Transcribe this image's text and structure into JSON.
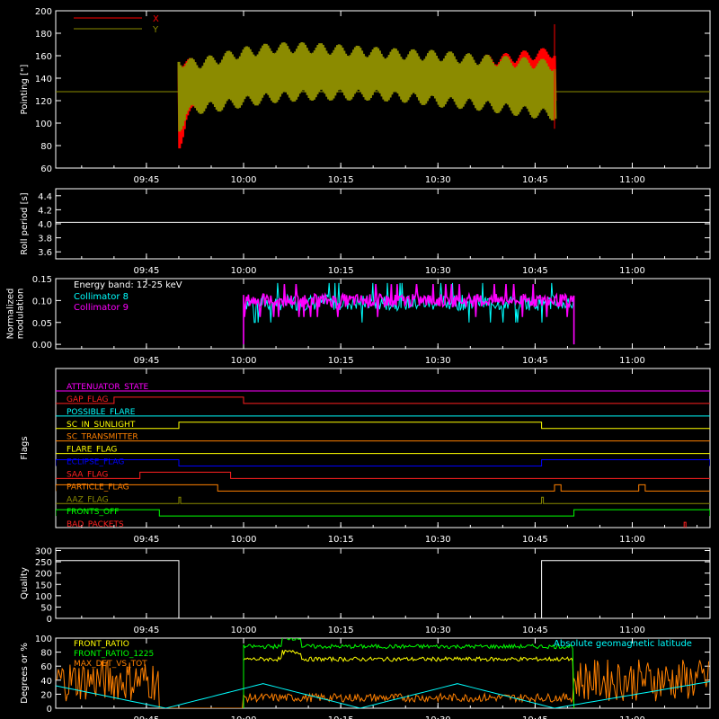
{
  "time_axis": {
    "start": "09:31",
    "end": "11:12",
    "ticks": [
      "09:45",
      "10:00",
      "10:15",
      "10:30",
      "10:45",
      "11:00"
    ]
  },
  "chart_data": [
    {
      "id": "pointing",
      "type": "line",
      "ylabel": "Pointing [\"]",
      "ylim": [
        60,
        200
      ],
      "yticks": [
        60,
        80,
        100,
        120,
        140,
        160,
        180,
        200
      ],
      "legend": "top-left",
      "series": [
        {
          "name": "X",
          "color": "#ff0000",
          "envelope": {
            "t": [
              "09:50",
              "09:51",
              "09:53",
              "09:56",
              "10:00",
              "10:05",
              "10:10",
              "10:15",
              "10:20",
              "10:25",
              "10:30",
              "10:35",
              "10:40",
              "10:45",
              "10:48"
            ],
            "upper": [
              160,
              160,
              155,
              150,
              155,
              160,
              162,
              160,
              158,
              158,
              158,
              160,
              162,
              166,
              168
            ],
            "lower": [
              75,
              100,
              110,
              118,
              120,
              121,
              122,
              122,
              122,
              121,
              120,
              120,
              120,
              120,
              118
            ]
          }
        },
        {
          "name": "Y",
          "color": "#8b8b00",
          "envelope": {
            "t": [
              "09:50",
              "09:51",
              "09:53",
              "09:56",
              "10:00",
              "10:05",
              "10:10",
              "10:15",
              "10:20",
              "10:25",
              "10:30",
              "10:35",
              "10:40",
              "10:45",
              "10:48"
            ],
            "upper": [
              162,
              158,
              158,
              162,
              168,
              172,
              172,
              170,
              168,
              166,
              165,
              162,
              160,
              158,
              156
            ],
            "lower": [
              90,
              105,
              108,
              110,
              114,
              118,
              120,
              120,
              120,
              118,
              114,
              112,
              108,
              104,
              102
            ]
          },
          "baseline": 128
        }
      ]
    },
    {
      "id": "roll",
      "type": "line",
      "ylabel": "Roll period [s]",
      "ylim": [
        3.5,
        4.5
      ],
      "yticks": [
        3.6,
        3.8,
        4.0,
        4.2,
        4.4
      ],
      "series": [
        {
          "color": "#ffffff",
          "t": [
            "09:31",
            "11:12"
          ],
          "y": [
            4.02,
            4.02
          ]
        }
      ]
    },
    {
      "id": "modulation",
      "type": "line",
      "ylabel": [
        "Normalized",
        "modulation"
      ],
      "ylim": [
        -0.01,
        0.15
      ],
      "yticks": [
        0.0,
        0.05,
        0.1,
        0.15
      ],
      "annotation": "Energy band: 12-25 keV",
      "legend": "top-left",
      "series": [
        {
          "name": "Collimator 8",
          "color": "#00ffff",
          "t": [
            "10:00",
            "10:51"
          ],
          "mean": 0.095,
          "noise": 0.018
        },
        {
          "name": "Collimator 9",
          "color": "#ff00ff",
          "t": [
            "10:00",
            "10:51"
          ],
          "mean": 0.1,
          "noise": 0.015
        }
      ]
    },
    {
      "id": "flags",
      "type": "line",
      "ylabel": "Flags",
      "flags": [
        {
          "name": "ATTENUATOR_STATE",
          "color": "#ff00ff",
          "on": []
        },
        {
          "name": "GAP_FLAG",
          "color": "#ff2020",
          "on": [
            [
              "09:40",
              "10:00"
            ]
          ]
        },
        {
          "name": "POSSIBLE_FLARE",
          "color": "#00ffff",
          "on": []
        },
        {
          "name": "SC_IN_SUNLIGHT",
          "color": "#ffff00",
          "on": [
            [
              "09:50",
              "10:46"
            ]
          ]
        },
        {
          "name": "SC_TRANSMITTER",
          "color": "#ff8000",
          "on": []
        },
        {
          "name": "FLARE_FLAG",
          "color": "#ffff00",
          "on": []
        },
        {
          "name": "ECLIPSE_FLAG",
          "color": "#0000ff",
          "on": [
            [
              "09:31",
              "09:50"
            ],
            [
              "10:46",
              "11:12"
            ]
          ]
        },
        {
          "name": "SAA_FLAG",
          "color": "#ff2020",
          "on": [
            [
              "09:44",
              "09:58"
            ]
          ]
        },
        {
          "name": "PARTICLE_FLAG",
          "color": "#ff8000",
          "on": [
            [
              "09:31",
              "09:56"
            ],
            [
              "10:48",
              "10:49"
            ],
            [
              "11:01",
              "11:02"
            ]
          ]
        },
        {
          "name": "AAZ_FLAG",
          "color": "#8b8b00",
          "on": [
            [
              "09:50",
              "09:50"
            ],
            [
              "10:46",
              "10:46"
            ]
          ]
        },
        {
          "name": "FRONTS_OFF",
          "color": "#00ff00",
          "on": [
            [
              "09:31",
              "09:47"
            ],
            [
              "10:51",
              "11:12"
            ]
          ]
        },
        {
          "name": "BAD_PACKETS",
          "color": "#ff2020",
          "on": [
            [
              "11:08",
              "11:08"
            ]
          ]
        }
      ]
    },
    {
      "id": "quality",
      "type": "line",
      "ylabel": "Quality",
      "ylim": [
        0,
        310
      ],
      "yticks": [
        0,
        50,
        100,
        150,
        200,
        250,
        300
      ],
      "series": [
        {
          "color": "#ffffff",
          "t": [
            "09:31",
            "09:50",
            "09:50",
            "10:46",
            "10:46",
            "11:12"
          ],
          "y": [
            255,
            255,
            0,
            0,
            255,
            255
          ]
        }
      ]
    },
    {
      "id": "ratios",
      "type": "line",
      "ylabel": "Degrees or %",
      "ylim": [
        0,
        100
      ],
      "yticks": [
        0,
        20,
        40,
        60,
        80,
        100
      ],
      "annotation": "Absolute geomagnetic latitude",
      "annotation_color": "#00ffff",
      "legend": "top-left",
      "series": [
        {
          "name": "FRONT_RATIO",
          "color": "#ffff00",
          "t": [
            "10:00",
            "10:51"
          ],
          "mean": 70,
          "noise": 3
        },
        {
          "name": "FRONT_RATIO_1225",
          "color": "#00ff00",
          "t": [
            "10:00",
            "10:51"
          ],
          "mean": 88,
          "noise": 3
        },
        {
          "name": "MAX_DET_VS_TOT",
          "color": "#ff8000",
          "mean": 15,
          "noise": 6
        },
        {
          "name": "Absolute geomagnetic latitude",
          "color": "#00ffff",
          "t": [
            "09:31",
            "09:48",
            "10:03",
            "10:18",
            "10:33",
            "10:48",
            "11:12"
          ],
          "y": [
            32,
            0,
            35,
            0,
            35,
            0,
            38
          ]
        }
      ]
    }
  ]
}
